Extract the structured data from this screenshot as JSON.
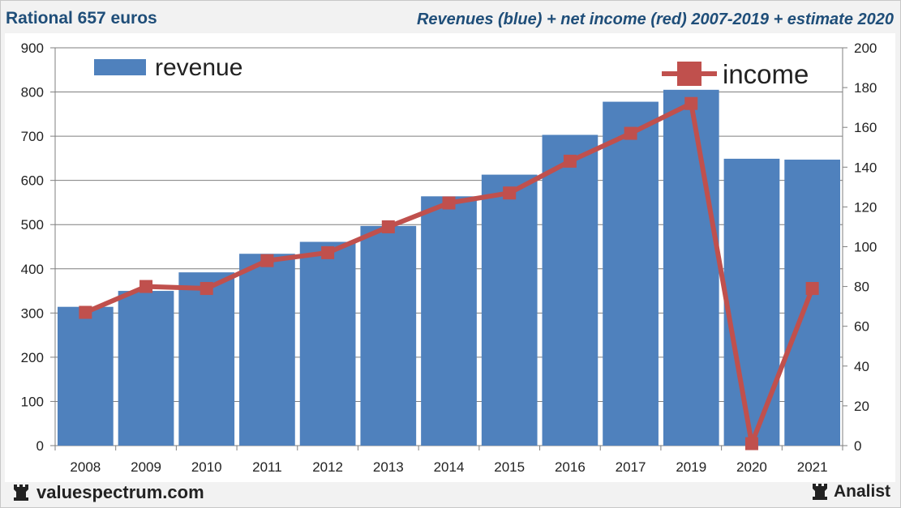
{
  "header": {
    "left_title": "Rational 657 euros",
    "right_title": "Revenues (blue) + net income (red) 2007-2019 + estimate 2020"
  },
  "footer": {
    "left_brand": "valuespectrum.com",
    "right_brand": "Analist"
  },
  "colors": {
    "revenue": "#4f81bd",
    "income": "#c0504d",
    "header": "#1f4e79"
  },
  "chart_data": {
    "type": "bar",
    "categories": [
      "2008",
      "2009",
      "2010",
      "2011",
      "2012",
      "2013",
      "2014",
      "2015",
      "2016",
      "2017",
      "2019",
      "2020",
      "2021"
    ],
    "series": [
      {
        "name": "revenue",
        "type": "bar",
        "axis": "left",
        "values": [
          314,
          350,
          392,
          434,
          461,
          497,
          564,
          613,
          703,
          778,
          805,
          649,
          647
        ]
      },
      {
        "name": "income",
        "type": "line",
        "axis": "right",
        "values": [
          67,
          80,
          79,
          93,
          97,
          110,
          122,
          127,
          143,
          157,
          172,
          1,
          79
        ]
      }
    ],
    "y_left": {
      "min": 0,
      "max": 900,
      "step": 100,
      "ticks": [
        "0",
        "100",
        "200",
        "300",
        "400",
        "500",
        "600",
        "700",
        "800",
        "900"
      ]
    },
    "y_right": {
      "min": 0,
      "max": 200,
      "step": 20,
      "ticks": [
        "0",
        "20",
        "40",
        "60",
        "80",
        "100",
        "120",
        "140",
        "160",
        "180",
        "200"
      ]
    },
    "legend": [
      {
        "label": "revenue",
        "position": "top-left"
      },
      {
        "label": "income",
        "position": "top-right"
      }
    ],
    "grid": true
  }
}
